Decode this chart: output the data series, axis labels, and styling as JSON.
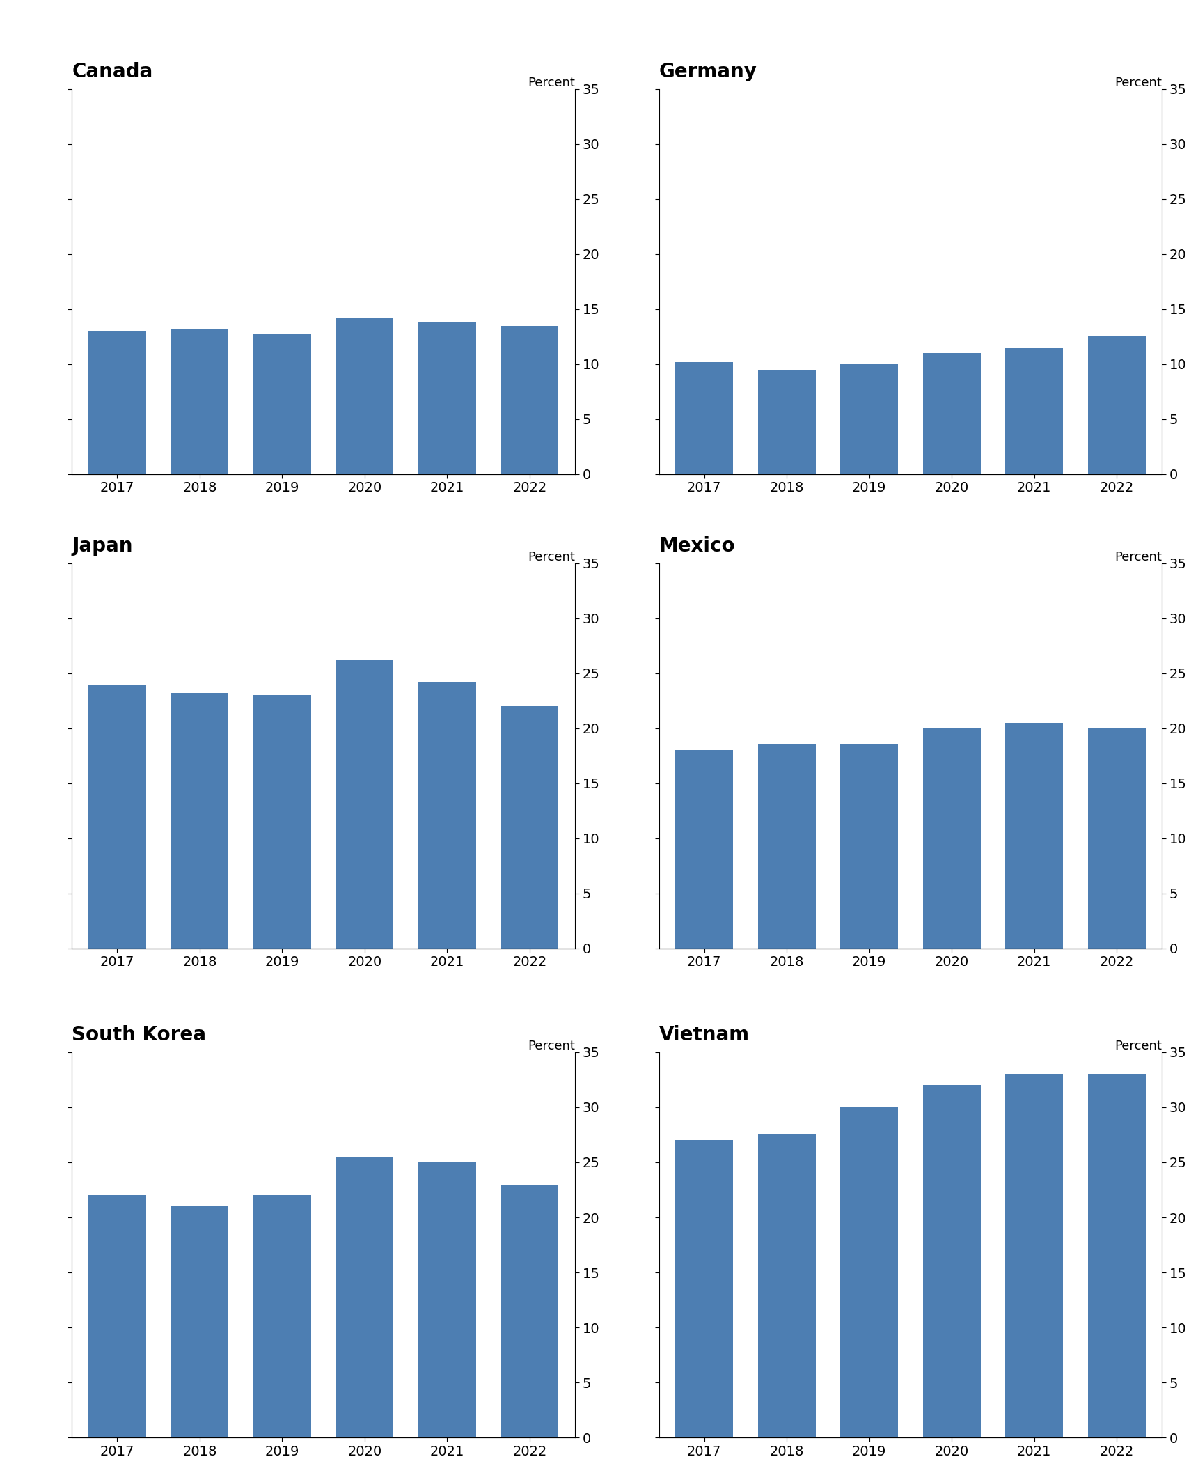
{
  "panels": [
    {
      "title": "Canada",
      "values": [
        13.0,
        13.2,
        12.7,
        14.2,
        13.8,
        13.5
      ],
      "ylim": [
        0,
        35
      ],
      "yticks": [
        0,
        5,
        10,
        15,
        20,
        25,
        30,
        35
      ]
    },
    {
      "title": "Germany",
      "values": [
        10.2,
        9.5,
        10.0,
        11.0,
        11.5,
        12.5
      ],
      "ylim": [
        0,
        35
      ],
      "yticks": [
        0,
        5,
        10,
        15,
        20,
        25,
        30,
        35
      ]
    },
    {
      "title": "Japan",
      "values": [
        24.0,
        23.2,
        23.0,
        26.2,
        24.2,
        22.0
      ],
      "ylim": [
        0,
        35
      ],
      "yticks": [
        0,
        5,
        10,
        15,
        20,
        25,
        30,
        35
      ]
    },
    {
      "title": "Mexico",
      "values": [
        18.0,
        18.5,
        18.5,
        20.0,
        20.5,
        20.0
      ],
      "ylim": [
        0,
        35
      ],
      "yticks": [
        0,
        5,
        10,
        15,
        20,
        25,
        30,
        35
      ]
    },
    {
      "title": "South Korea",
      "values": [
        22.0,
        21.0,
        22.0,
        25.5,
        25.0,
        23.0
      ],
      "ylim": [
        0,
        35
      ],
      "yticks": [
        0,
        5,
        10,
        15,
        20,
        25,
        30,
        35
      ]
    },
    {
      "title": "Vietnam",
      "values": [
        27.0,
        27.5,
        30.0,
        32.0,
        33.0,
        33.0
      ],
      "ylim": [
        0,
        35
      ],
      "yticks": [
        0,
        5,
        10,
        15,
        20,
        25,
        30,
        35
      ]
    }
  ],
  "years": [
    "2017",
    "2018",
    "2019",
    "2020",
    "2021",
    "2022"
  ],
  "bar_color": "#4d7eb2",
  "bar_width": 0.7,
  "percent_label": "Percent",
  "background_color": "#ffffff",
  "title_fontsize": 20,
  "tick_fontsize": 14,
  "percent_fontsize": 13
}
